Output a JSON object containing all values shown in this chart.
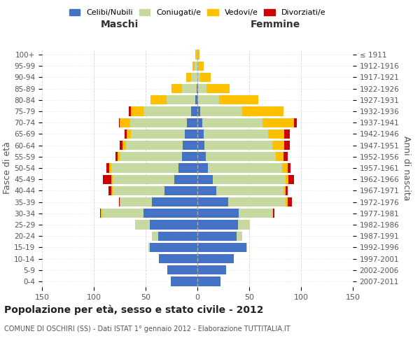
{
  "age_groups": [
    "0-4",
    "5-9",
    "10-14",
    "15-19",
    "20-24",
    "25-29",
    "30-34",
    "35-39",
    "40-44",
    "45-49",
    "50-54",
    "55-59",
    "60-64",
    "65-69",
    "70-74",
    "75-79",
    "80-84",
    "85-89",
    "90-94",
    "95-99",
    "100+"
  ],
  "birth_years": [
    "2007-2011",
    "2002-2006",
    "1997-2001",
    "1992-1996",
    "1987-1991",
    "1982-1986",
    "1977-1981",
    "1972-1976",
    "1967-1971",
    "1962-1966",
    "1957-1961",
    "1952-1956",
    "1947-1951",
    "1942-1946",
    "1937-1941",
    "1932-1936",
    "1927-1931",
    "1922-1926",
    "1917-1921",
    "1912-1916",
    "≤ 1911"
  ],
  "male_celibe": [
    26,
    29,
    37,
    46,
    38,
    46,
    52,
    44,
    32,
    22,
    18,
    15,
    14,
    12,
    10,
    6,
    2,
    1,
    0,
    0,
    0
  ],
  "male_coniugato": [
    0,
    0,
    0,
    1,
    6,
    14,
    40,
    30,
    50,
    60,
    65,
    60,
    55,
    52,
    55,
    46,
    28,
    14,
    6,
    3,
    1
  ],
  "male_vedovo": [
    0,
    0,
    0,
    0,
    0,
    0,
    1,
    1,
    1,
    1,
    2,
    2,
    3,
    4,
    10,
    12,
    15,
    10,
    5,
    2,
    1
  ],
  "male_divorziato": [
    0,
    0,
    0,
    0,
    0,
    0,
    1,
    1,
    3,
    8,
    3,
    2,
    3,
    2,
    1,
    2,
    0,
    0,
    0,
    0,
    0
  ],
  "female_celibe": [
    22,
    28,
    35,
    47,
    38,
    39,
    40,
    30,
    18,
    15,
    10,
    8,
    7,
    6,
    5,
    3,
    1,
    1,
    0,
    0,
    0
  ],
  "female_coniugato": [
    0,
    0,
    0,
    1,
    5,
    12,
    32,
    55,
    65,
    70,
    72,
    68,
    65,
    62,
    58,
    40,
    20,
    8,
    3,
    1,
    0
  ],
  "female_vedovo": [
    0,
    0,
    0,
    0,
    0,
    0,
    1,
    2,
    2,
    3,
    5,
    7,
    12,
    16,
    30,
    40,
    38,
    22,
    10,
    5,
    2
  ],
  "female_divorziato": [
    0,
    0,
    0,
    0,
    0,
    0,
    1,
    4,
    2,
    5,
    3,
    4,
    5,
    5,
    3,
    0,
    0,
    0,
    0,
    0,
    0
  ],
  "color_celibe": "#4472c4",
  "color_coniugato": "#c5d9a0",
  "color_vedovo": "#ffc000",
  "color_divorziato": "#cc0000",
  "title": "Popolazione per età, sesso e stato civile - 2012",
  "subtitle": "COMUNE DI OSCHIRI (SS) - Dati ISTAT 1° gennaio 2012 - Elaborazione TUTTITALIA.IT",
  "xlabel_left": "Maschi",
  "xlabel_right": "Femmine",
  "ylabel_left": "Fasce di età",
  "ylabel_right": "Anni di nascita",
  "xlim": 150,
  "bg_color": "#ffffff",
  "grid_color": "#cccccc"
}
